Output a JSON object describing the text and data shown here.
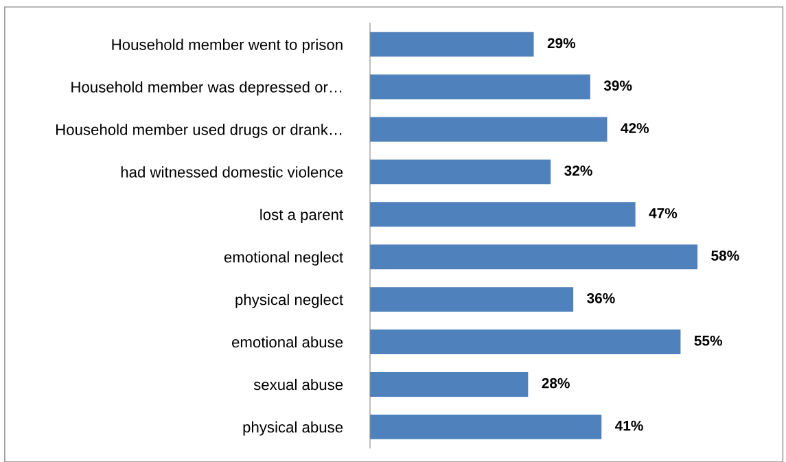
{
  "chart_data": {
    "type": "bar",
    "orientation": "horizontal",
    "categories": [
      "Household member went to prison",
      "Household member was depressed or…",
      "Household member used drugs or drank…",
      "had witnessed domestic violence",
      "lost a parent",
      "emotional neglect",
      "physical neglect",
      "emotional abuse",
      "sexual abuse",
      "physical abuse"
    ],
    "values": [
      29,
      39,
      42,
      32,
      47,
      58,
      36,
      55,
      28,
      41
    ],
    "value_labels": [
      "29%",
      "39%",
      "42%",
      "32%",
      "47%",
      "58%",
      "36%",
      "55%",
      "28%",
      "41%"
    ],
    "color": "#4f81bd",
    "tick_labels": "y",
    "grid": false,
    "legend": false
  }
}
